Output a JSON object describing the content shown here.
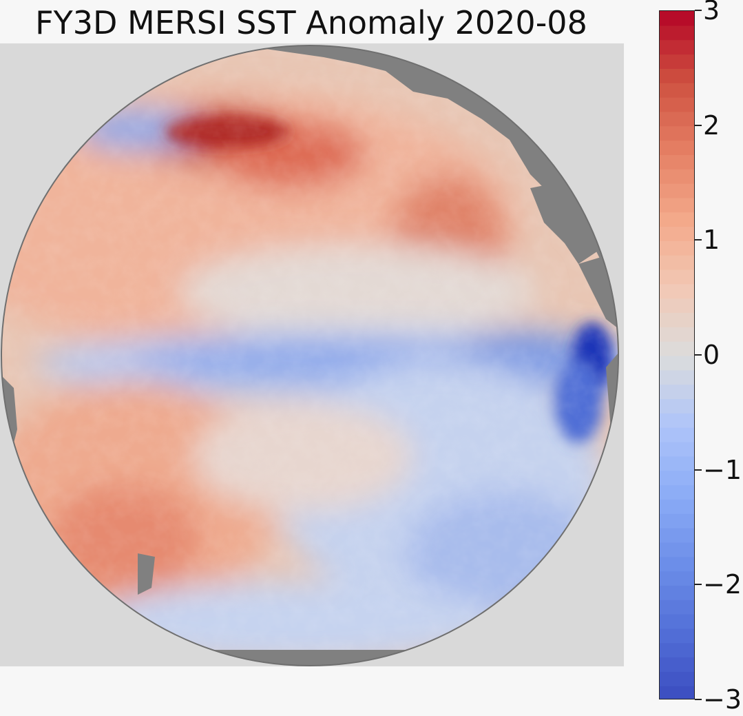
{
  "figure": {
    "title": "FY3D MERSI SST Anomaly 2020-08",
    "variable": "SST Anomaly",
    "satellite": "FY3D",
    "sensor": "MERSI",
    "period": "2020-08"
  },
  "colorbar": {
    "vmin": -3,
    "vmax": 3,
    "colormap": "coolwarm",
    "ticks": [
      {
        "value": 3,
        "label": "3"
      },
      {
        "value": 2,
        "label": "2"
      },
      {
        "value": 1,
        "label": "1"
      },
      {
        "value": 0,
        "label": "0"
      },
      {
        "value": -1,
        "label": "−1"
      },
      {
        "value": -2,
        "label": "−2"
      },
      {
        "value": -3,
        "label": "−3"
      }
    ],
    "colors": {
      "low": "#3a4cc0",
      "mid": "#dcdcdc",
      "high": "#b40426"
    }
  },
  "map": {
    "projection": "orthographic",
    "land_color": "#808080",
    "background_color": "#d9d9d9"
  }
}
